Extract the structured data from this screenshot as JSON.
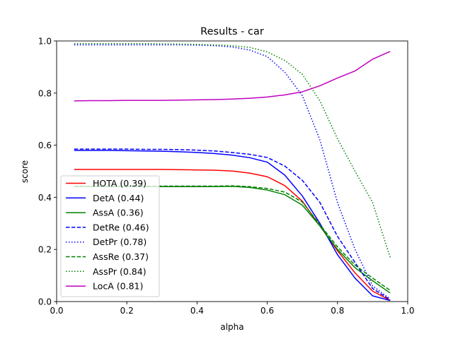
{
  "chart_data": {
    "type": "line",
    "title": "Results - car",
    "xlabel": "alpha",
    "ylabel": "score",
    "xlim": [
      0.0,
      1.0
    ],
    "ylim": [
      0.0,
      1.0
    ],
    "xticks": [
      "0.0",
      "0.2",
      "0.4",
      "0.6",
      "0.8",
      "1.0"
    ],
    "yticks": [
      "0.0",
      "0.2",
      "0.4",
      "0.6",
      "0.8",
      "1.0"
    ],
    "grid": false,
    "legend_position": "lower-left",
    "x": [
      0.05,
      0.1,
      0.15,
      0.2,
      0.25,
      0.3,
      0.35,
      0.4,
      0.45,
      0.5,
      0.55,
      0.6,
      0.65,
      0.7,
      0.75,
      0.8,
      0.85,
      0.9,
      0.95
    ],
    "series": [
      {
        "name": "HOTA (0.39)",
        "color": "#ff0000",
        "dash": "solid",
        "values": [
          0.507,
          0.507,
          0.507,
          0.507,
          0.507,
          0.507,
          0.506,
          0.505,
          0.504,
          0.501,
          0.493,
          0.479,
          0.445,
          0.385,
          0.29,
          0.195,
          0.11,
          0.04,
          0.005
        ]
      },
      {
        "name": "DetA (0.44)",
        "color": "#0000ff",
        "dash": "solid",
        "values": [
          0.58,
          0.58,
          0.58,
          0.579,
          0.578,
          0.577,
          0.575,
          0.572,
          0.568,
          0.562,
          0.552,
          0.535,
          0.485,
          0.405,
          0.3,
          0.18,
          0.09,
          0.022,
          0.004
        ]
      },
      {
        "name": "AssA (0.36)",
        "color": "#008000",
        "dash": "solid",
        "values": [
          0.441,
          0.441,
          0.441,
          0.441,
          0.441,
          0.441,
          0.441,
          0.441,
          0.441,
          0.442,
          0.438,
          0.428,
          0.41,
          0.37,
          0.29,
          0.2,
          0.13,
          0.08,
          0.033
        ]
      },
      {
        "name": "DetRe (0.46)",
        "color": "#0000ff",
        "dash": "dashed",
        "values": [
          0.585,
          0.585,
          0.585,
          0.585,
          0.584,
          0.584,
          0.583,
          0.581,
          0.578,
          0.572,
          0.565,
          0.553,
          0.52,
          0.465,
          0.38,
          0.25,
          0.15,
          0.05,
          0.007
        ]
      },
      {
        "name": "DetPr (0.78)",
        "color": "#0000ff",
        "dash": "dotted",
        "values": [
          0.985,
          0.985,
          0.985,
          0.985,
          0.985,
          0.985,
          0.985,
          0.984,
          0.982,
          0.977,
          0.965,
          0.94,
          0.88,
          0.79,
          0.62,
          0.38,
          0.2,
          0.06,
          0.01
        ]
      },
      {
        "name": "AssRe (0.37)",
        "color": "#008000",
        "dash": "dashed",
        "values": [
          0.443,
          0.443,
          0.443,
          0.443,
          0.443,
          0.443,
          0.443,
          0.443,
          0.443,
          0.444,
          0.441,
          0.434,
          0.42,
          0.382,
          0.295,
          0.21,
          0.14,
          0.09,
          0.043
        ]
      },
      {
        "name": "AssPr (0.84)",
        "color": "#008000",
        "dash": "dotted",
        "values": [
          0.99,
          0.99,
          0.99,
          0.99,
          0.99,
          0.989,
          0.988,
          0.987,
          0.985,
          0.982,
          0.975,
          0.958,
          0.925,
          0.872,
          0.77,
          0.625,
          0.5,
          0.38,
          0.17
        ]
      },
      {
        "name": "LocA (0.81)",
        "color": "#bf00bf",
        "dash": "solid",
        "values": [
          0.77,
          0.771,
          0.771,
          0.772,
          0.772,
          0.772,
          0.773,
          0.774,
          0.775,
          0.777,
          0.78,
          0.785,
          0.793,
          0.805,
          0.828,
          0.858,
          0.885,
          0.93,
          0.96
        ]
      }
    ]
  }
}
